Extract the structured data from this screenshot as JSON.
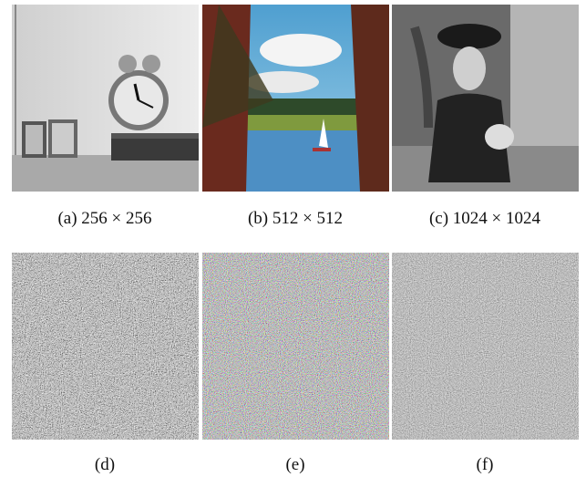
{
  "figure": {
    "panels": [
      {
        "caption": "(a) 256 × 256"
      },
      {
        "caption": "(b) 512 × 512"
      },
      {
        "caption": "(c) 1024 × 1024"
      },
      {
        "caption": "(d)"
      },
      {
        "caption": "(e)"
      },
      {
        "caption": "(f)"
      }
    ]
  }
}
